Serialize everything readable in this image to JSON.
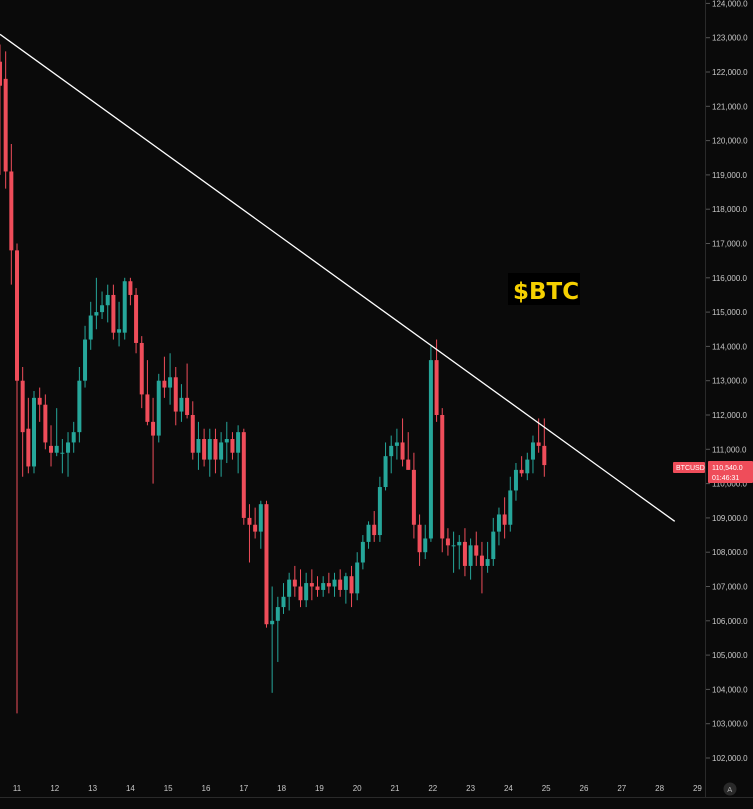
{
  "chart_data": {
    "type": "candlestick",
    "symbol": "BTCUSD",
    "annotation": "$BTC",
    "current_price_label": "110,540.0",
    "countdown_label": "01:46:31",
    "colors": {
      "background": "#0a0a0a",
      "up": "#26a69a",
      "down": "#ef4d5a",
      "trendline": "#ffffff",
      "annotation": "#f5d000",
      "price_tag": "#ef4d5a"
    },
    "y_ticks": [
      102000,
      103000,
      104000,
      105000,
      106000,
      107000,
      108000,
      109000,
      110000,
      111000,
      112000,
      113000,
      114000,
      115000,
      116000,
      117000,
      118000,
      119000,
      120000,
      121000,
      122000,
      123000,
      124000
    ],
    "y_tick_labels": [
      "102,000.0",
      "103,000.0",
      "104,000.0",
      "105,000.0",
      "106,000.0",
      "107,000.0",
      "108,000.0",
      "109,000.0",
      "110,000.0",
      "111,000.0",
      "112,000.0",
      "113,000.0",
      "114,000.0",
      "115,000.0",
      "116,000.0",
      "117,000.0",
      "118,000.0",
      "119,000.0",
      "120,000.0",
      "121,000.0",
      "122,000.0",
      "123,000.0",
      "124,000.0"
    ],
    "x_ticks": [
      11,
      12,
      13,
      14,
      15,
      16,
      17,
      18,
      19,
      20,
      21,
      22,
      23,
      24,
      25,
      26,
      27,
      28,
      29
    ],
    "x_tick_labels": [
      "11",
      "12",
      "13",
      "14",
      "15",
      "16",
      "17",
      "18",
      "19",
      "20",
      "21",
      "22",
      "23",
      "24",
      "25",
      "26",
      "27",
      "28",
      "29"
    ],
    "trendline": {
      "x1": 10.55,
      "y1": 123100,
      "x2": 28.4,
      "y2": 108900
    },
    "candles": [
      {
        "t": 10.55,
        "o": 122300,
        "h": 122800,
        "l": 119000,
        "c": 121600
      },
      {
        "t": 10.7,
        "o": 121800,
        "h": 122600,
        "l": 118600,
        "c": 119100
      },
      {
        "t": 10.85,
        "o": 119100,
        "h": 119900,
        "l": 115800,
        "c": 116800
      },
      {
        "t": 11.0,
        "o": 116800,
        "h": 117000,
        "l": 103300,
        "c": 113000
      },
      {
        "t": 11.15,
        "o": 113000,
        "h": 113400,
        "l": 110200,
        "c": 111500
      },
      {
        "t": 11.3,
        "o": 111600,
        "h": 112500,
        "l": 110300,
        "c": 110500
      },
      {
        "t": 11.45,
        "o": 110500,
        "h": 112700,
        "l": 110300,
        "c": 112500
      },
      {
        "t": 11.6,
        "o": 112500,
        "h": 112800,
        "l": 111800,
        "c": 112300
      },
      {
        "t": 11.75,
        "o": 112300,
        "h": 112600,
        "l": 111000,
        "c": 111200
      },
      {
        "t": 11.9,
        "o": 111100,
        "h": 111700,
        "l": 110500,
        "c": 110900
      },
      {
        "t": 12.05,
        "o": 110900,
        "h": 112200,
        "l": 110800,
        "c": 111100
      },
      {
        "t": 12.2,
        "o": 110900,
        "h": 111300,
        "l": 110300,
        "c": 110900
      },
      {
        "t": 12.35,
        "o": 110900,
        "h": 111500,
        "l": 110200,
        "c": 111200
      },
      {
        "t": 12.5,
        "o": 111200,
        "h": 111800,
        "l": 110900,
        "c": 111500
      },
      {
        "t": 12.65,
        "o": 111500,
        "h": 113400,
        "l": 111200,
        "c": 113000
      },
      {
        "t": 12.8,
        "o": 113000,
        "h": 114600,
        "l": 112800,
        "c": 114200
      },
      {
        "t": 12.95,
        "o": 114200,
        "h": 115300,
        "l": 113900,
        "c": 114900
      },
      {
        "t": 13.1,
        "o": 114900,
        "h": 116000,
        "l": 114500,
        "c": 115000
      },
      {
        "t": 13.25,
        "o": 115000,
        "h": 115600,
        "l": 114800,
        "c": 115200
      },
      {
        "t": 13.4,
        "o": 115200,
        "h": 115800,
        "l": 114700,
        "c": 115500
      },
      {
        "t": 13.55,
        "o": 115500,
        "h": 115800,
        "l": 114200,
        "c": 114400
      },
      {
        "t": 13.7,
        "o": 114400,
        "h": 115300,
        "l": 114000,
        "c": 114500
      },
      {
        "t": 13.85,
        "o": 114400,
        "h": 116000,
        "l": 114200,
        "c": 115900
      },
      {
        "t": 14.0,
        "o": 115900,
        "h": 116000,
        "l": 115200,
        "c": 115500
      },
      {
        "t": 14.15,
        "o": 115500,
        "h": 115700,
        "l": 113800,
        "c": 114100
      },
      {
        "t": 14.3,
        "o": 114100,
        "h": 114300,
        "l": 112200,
        "c": 112600
      },
      {
        "t": 14.45,
        "o": 112600,
        "h": 113600,
        "l": 111700,
        "c": 111800
      },
      {
        "t": 14.6,
        "o": 111800,
        "h": 112500,
        "l": 110000,
        "c": 111400
      },
      {
        "t": 14.75,
        "o": 111400,
        "h": 113200,
        "l": 111200,
        "c": 113000
      },
      {
        "t": 14.9,
        "o": 113000,
        "h": 113700,
        "l": 112500,
        "c": 112800
      },
      {
        "t": 15.05,
        "o": 112800,
        "h": 113800,
        "l": 112300,
        "c": 113100
      },
      {
        "t": 15.2,
        "o": 113100,
        "h": 113400,
        "l": 111700,
        "c": 112100
      },
      {
        "t": 15.35,
        "o": 112100,
        "h": 112900,
        "l": 111800,
        "c": 112500
      },
      {
        "t": 15.5,
        "o": 112500,
        "h": 113500,
        "l": 111900,
        "c": 112000
      },
      {
        "t": 15.65,
        "o": 112000,
        "h": 112400,
        "l": 110700,
        "c": 110900
      },
      {
        "t": 15.8,
        "o": 110900,
        "h": 111800,
        "l": 110400,
        "c": 111300
      },
      {
        "t": 15.95,
        "o": 111300,
        "h": 111600,
        "l": 110500,
        "c": 110700
      },
      {
        "t": 16.1,
        "o": 110700,
        "h": 111600,
        "l": 110200,
        "c": 111300
      },
      {
        "t": 16.25,
        "o": 111300,
        "h": 111600,
        "l": 110300,
        "c": 110700
      },
      {
        "t": 16.4,
        "o": 110700,
        "h": 111500,
        "l": 110200,
        "c": 111200
      },
      {
        "t": 16.55,
        "o": 111200,
        "h": 111800,
        "l": 110600,
        "c": 111300
      },
      {
        "t": 16.7,
        "o": 111300,
        "h": 111500,
        "l": 110700,
        "c": 110900
      },
      {
        "t": 16.85,
        "o": 110900,
        "h": 111700,
        "l": 110300,
        "c": 111500
      },
      {
        "t": 17.0,
        "o": 111500,
        "h": 111600,
        "l": 108800,
        "c": 109000
      },
      {
        "t": 17.15,
        "o": 109000,
        "h": 109400,
        "l": 107700,
        "c": 108800
      },
      {
        "t": 17.3,
        "o": 108800,
        "h": 109300,
        "l": 108400,
        "c": 108600
      },
      {
        "t": 17.45,
        "o": 108600,
        "h": 109500,
        "l": 108100,
        "c": 109400
      },
      {
        "t": 17.6,
        "o": 109400,
        "h": 109500,
        "l": 105800,
        "c": 105900
      },
      {
        "t": 17.75,
        "o": 105900,
        "h": 107000,
        "l": 103900,
        "c": 106000
      },
      {
        "t": 17.9,
        "o": 106000,
        "h": 106700,
        "l": 104800,
        "c": 106400
      },
      {
        "t": 18.05,
        "o": 106400,
        "h": 107100,
        "l": 106200,
        "c": 106700
      },
      {
        "t": 18.2,
        "o": 106700,
        "h": 107400,
        "l": 106300,
        "c": 107200
      },
      {
        "t": 18.35,
        "o": 107200,
        "h": 107600,
        "l": 106700,
        "c": 107000
      },
      {
        "t": 18.5,
        "o": 107000,
        "h": 107500,
        "l": 106400,
        "c": 106600
      },
      {
        "t": 18.65,
        "o": 106600,
        "h": 107400,
        "l": 106400,
        "c": 107100
      },
      {
        "t": 18.8,
        "o": 107100,
        "h": 107500,
        "l": 106600,
        "c": 107000
      },
      {
        "t": 18.95,
        "o": 107000,
        "h": 107300,
        "l": 106700,
        "c": 106900
      },
      {
        "t": 19.1,
        "o": 106900,
        "h": 107300,
        "l": 106700,
        "c": 107100
      },
      {
        "t": 19.25,
        "o": 107100,
        "h": 107400,
        "l": 106800,
        "c": 107000
      },
      {
        "t": 19.4,
        "o": 107000,
        "h": 107400,
        "l": 106700,
        "c": 107200
      },
      {
        "t": 19.55,
        "o": 107200,
        "h": 107500,
        "l": 106700,
        "c": 106900
      },
      {
        "t": 19.7,
        "o": 106900,
        "h": 107400,
        "l": 106500,
        "c": 107300
      },
      {
        "t": 19.85,
        "o": 107300,
        "h": 107600,
        "l": 106400,
        "c": 106800
      },
      {
        "t": 20.0,
        "o": 106800,
        "h": 108000,
        "l": 106600,
        "c": 107700
      },
      {
        "t": 20.15,
        "o": 107700,
        "h": 108500,
        "l": 107500,
        "c": 108300
      },
      {
        "t": 20.3,
        "o": 108300,
        "h": 108900,
        "l": 108100,
        "c": 108800
      },
      {
        "t": 20.45,
        "o": 108800,
        "h": 109200,
        "l": 108300,
        "c": 108500
      },
      {
        "t": 20.6,
        "o": 108500,
        "h": 110200,
        "l": 108300,
        "c": 109900
      },
      {
        "t": 20.75,
        "o": 109900,
        "h": 111200,
        "l": 109800,
        "c": 110800
      },
      {
        "t": 20.9,
        "o": 110800,
        "h": 111400,
        "l": 110300,
        "c": 111100
      },
      {
        "t": 21.05,
        "o": 111100,
        "h": 111600,
        "l": 110700,
        "c": 111200
      },
      {
        "t": 21.2,
        "o": 111200,
        "h": 111900,
        "l": 110500,
        "c": 110700
      },
      {
        "t": 21.35,
        "o": 110700,
        "h": 111500,
        "l": 110400,
        "c": 110400
      },
      {
        "t": 21.5,
        "o": 110400,
        "h": 110900,
        "l": 108400,
        "c": 108800
      },
      {
        "t": 21.65,
        "o": 108800,
        "h": 109100,
        "l": 107600,
        "c": 108000
      },
      {
        "t": 21.8,
        "o": 108000,
        "h": 108800,
        "l": 107800,
        "c": 108400
      },
      {
        "t": 21.95,
        "o": 108400,
        "h": 114000,
        "l": 108300,
        "c": 113600
      },
      {
        "t": 22.1,
        "o": 113600,
        "h": 114200,
        "l": 111800,
        "c": 112000
      },
      {
        "t": 22.25,
        "o": 112000,
        "h": 112200,
        "l": 108000,
        "c": 108400
      },
      {
        "t": 22.4,
        "o": 108400,
        "h": 108700,
        "l": 107900,
        "c": 108200
      },
      {
        "t": 22.55,
        "o": 108200,
        "h": 108600,
        "l": 107400,
        "c": 108200
      },
      {
        "t": 22.7,
        "o": 108200,
        "h": 108500,
        "l": 107500,
        "c": 108300
      },
      {
        "t": 22.85,
        "o": 108300,
        "h": 108700,
        "l": 107300,
        "c": 107600
      },
      {
        "t": 23.0,
        "o": 107600,
        "h": 108400,
        "l": 107200,
        "c": 108200
      },
      {
        "t": 23.15,
        "o": 108200,
        "h": 108600,
        "l": 107600,
        "c": 107900
      },
      {
        "t": 23.3,
        "o": 107900,
        "h": 108300,
        "l": 106800,
        "c": 107600
      },
      {
        "t": 23.45,
        "o": 107600,
        "h": 108300,
        "l": 107400,
        "c": 107800
      },
      {
        "t": 23.6,
        "o": 107800,
        "h": 109000,
        "l": 107600,
        "c": 108600
      },
      {
        "t": 23.75,
        "o": 108600,
        "h": 109300,
        "l": 108200,
        "c": 109100
      },
      {
        "t": 23.9,
        "o": 109100,
        "h": 109600,
        "l": 108400,
        "c": 108800
      },
      {
        "t": 24.05,
        "o": 108800,
        "h": 110200,
        "l": 108600,
        "c": 109800
      },
      {
        "t": 24.2,
        "o": 109800,
        "h": 110600,
        "l": 109500,
        "c": 110400
      },
      {
        "t": 24.35,
        "o": 110400,
        "h": 110800,
        "l": 110200,
        "c": 110300
      },
      {
        "t": 24.5,
        "o": 110300,
        "h": 110900,
        "l": 110100,
        "c": 110700
      },
      {
        "t": 24.65,
        "o": 110700,
        "h": 111400,
        "l": 110300,
        "c": 111200
      },
      {
        "t": 24.8,
        "o": 111200,
        "h": 111900,
        "l": 110900,
        "c": 111100
      },
      {
        "t": 24.95,
        "o": 111100,
        "h": 111900,
        "l": 110200,
        "c": 110540
      }
    ]
  }
}
